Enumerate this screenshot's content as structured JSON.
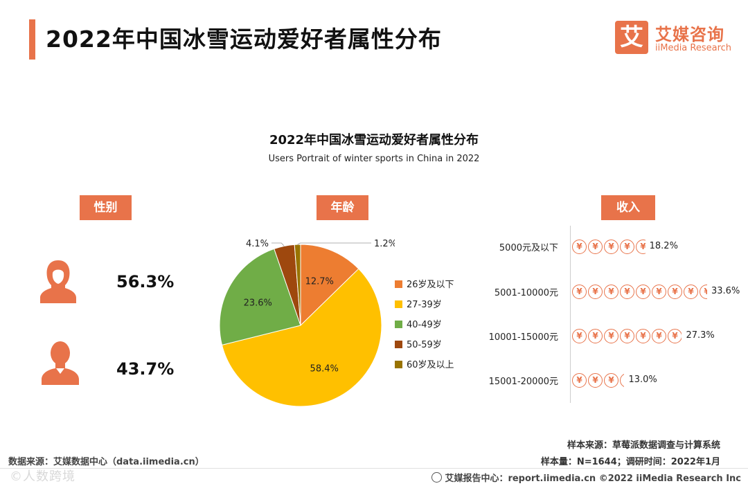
{
  "header": {
    "title": "2022年中国冰雪运动爱好者属性分布",
    "logo_mark": "艾",
    "logo_cn": "艾媒咨询",
    "logo_en": "iiMedia Research"
  },
  "chart_title": "2022年中国冰雪运动爱好者属性分布",
  "chart_subtitle": "Users Portrait of winter sports in China in 2022",
  "sections": {
    "gender": "性别",
    "age": "年龄",
    "income": "收入"
  },
  "gender": {
    "female_pct": "56.3%",
    "male_pct": "43.7%"
  },
  "chart_data": [
    {
      "type": "pie",
      "title": "年龄",
      "categories": [
        "26岁及以下",
        "27-39岁",
        "40-49岁",
        "50-59岁",
        "60岁及以上"
      ],
      "values": [
        12.7,
        58.4,
        23.6,
        4.1,
        1.2
      ],
      "labels": [
        "12.7%",
        "58.4%",
        "23.6%",
        "4.1%",
        "1.2%"
      ],
      "colors": [
        "#ed7d31",
        "#ffc000",
        "#70ad47",
        "#9e480e",
        "#997300"
      ],
      "legend": "right"
    },
    {
      "type": "bar",
      "title": "收入",
      "categories": [
        "5000元及以下",
        "5001-10000元",
        "10001-15000元",
        "15001-20000元"
      ],
      "values": [
        18.2,
        33.6,
        27.3,
        13.0
      ],
      "labels": [
        "18.2%",
        "33.6%",
        "27.3%",
        "13.0%"
      ],
      "orientation": "horizontal",
      "color": "#e8734a"
    },
    {
      "type": "table",
      "title": "性别",
      "categories": [
        "女",
        "男"
      ],
      "values": [
        56.3,
        43.7
      ]
    }
  ],
  "footer": {
    "source_left": "数据来源：艾媒数据中心（data.iimedia.cn）",
    "sample_source": "样本来源：草莓派数据调查与计算系统",
    "sample_size": "样本量：N=1644；调研时间：2022年1月",
    "report_center": "艾媒报告中心：report.iimedia.cn  ©2022  iiMedia Research  Inc",
    "watermark": "©人数跨境"
  },
  "colors": {
    "accent": "#e8734a"
  }
}
